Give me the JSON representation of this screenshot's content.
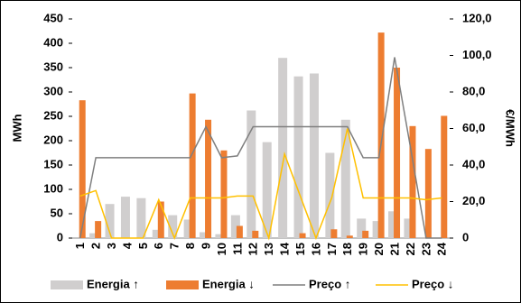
{
  "chart_data": {
    "type": "bar-line",
    "categories": [
      "1",
      "2",
      "3",
      "4",
      "5",
      "6",
      "7",
      "8",
      "9",
      "10",
      "11",
      "12",
      "13",
      "14",
      "15",
      "16",
      "17",
      "18",
      "19",
      "20",
      "21",
      "22",
      "23",
      "24"
    ],
    "y_label": "MWh",
    "y2_label": "€/MWh",
    "ylim": [
      0,
      450
    ],
    "yticks": [
      0,
      50,
      100,
      150,
      200,
      250,
      300,
      350,
      400,
      450
    ],
    "y2lim": [
      0,
      120
    ],
    "y2ticks": [
      0,
      {
        "value": 20,
        "label": "20,0"
      },
      {
        "value": 40,
        "label": "40,0"
      },
      {
        "value": 60,
        "label": "60,0"
      },
      {
        "value": 80,
        "label": "80,0"
      },
      {
        "value": 100,
        "label": "100,0"
      },
      {
        "value": 120,
        "label": "120,0"
      }
    ],
    "series": [
      {
        "name": "Energia ↑",
        "kind": "bar",
        "color": "#d0cece",
        "values": [
          0,
          10,
          70,
          85,
          82,
          17,
          47,
          38,
          12,
          8,
          47,
          262,
          197,
          370,
          332,
          338,
          175,
          243,
          40,
          35,
          55,
          40,
          0,
          0
        ]
      },
      {
        "name": "Energia ↓",
        "kind": "bar",
        "color": "#ed7d31",
        "values": [
          283,
          35,
          0,
          0,
          0,
          75,
          0,
          297,
          243,
          180,
          25,
          15,
          0,
          0,
          10,
          0,
          18,
          5,
          15,
          422,
          350,
          230,
          183,
          251
        ]
      },
      {
        "name": "Preço ↑",
        "kind": "line",
        "axis": "y2",
        "color": "#7f7f7f",
        "values": [
          0,
          44,
          44,
          44,
          44,
          44,
          44,
          44,
          61,
          44,
          45,
          61,
          61,
          61,
          61,
          61,
          61,
          61,
          44,
          44,
          99,
          50,
          0,
          0
        ]
      },
      {
        "name": "Preço ↓",
        "kind": "line",
        "axis": "y2",
        "color": "#ffc000",
        "values": [
          23,
          26,
          0,
          0,
          0,
          21,
          0,
          22,
          22,
          22,
          23,
          23,
          0,
          46,
          23,
          0,
          22,
          60,
          22,
          22,
          22,
          22,
          21,
          22
        ]
      }
    ]
  }
}
